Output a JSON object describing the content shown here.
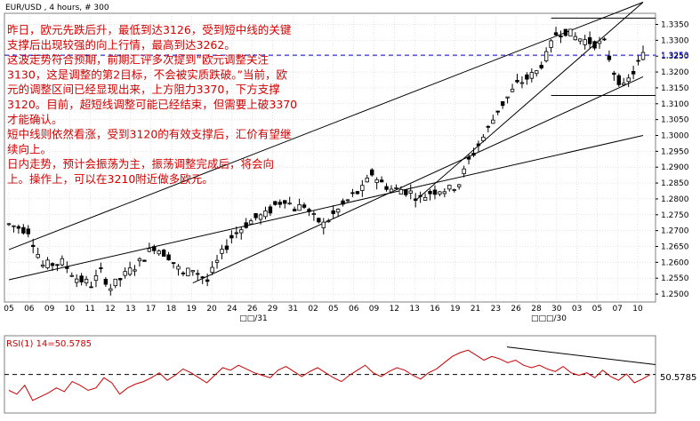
{
  "chart_data": [
    {
      "type": "candlestick",
      "title": "EUR/USD , 4 hours, # 300",
      "y_ticks": [
        "1.3350",
        "1.3300",
        "1.3250",
        "1.3200",
        "1.3150",
        "1.3100",
        "1.3050",
        "1.3000",
        "1.2950",
        "1.2900",
        "1.2850",
        "1.2800",
        "1.2750",
        "1.2700",
        "1.2650",
        "1.2600",
        "1.2550",
        "1.2500"
      ],
      "ylim": [
        1.2475,
        1.3385
      ],
      "last_price_label": "1.3253",
      "last_price": 1.3253,
      "x_ticks": [
        "05",
        "06",
        "09",
        "10",
        "11",
        "12",
        "13",
        "17",
        "18",
        "19",
        "20",
        "24",
        "26",
        "29",
        "31",
        "02",
        "05",
        "06",
        "09",
        "12",
        "13",
        "16",
        "19",
        "21",
        "23",
        "26",
        "28",
        "30",
        "03",
        "05",
        "07",
        "10"
      ],
      "month_labels": [
        "□□/31",
        "□□□/30"
      ],
      "price_path": [
        [
          0,
          1.272
        ],
        [
          4,
          1.27
        ],
        [
          7,
          1.259
        ],
        [
          11,
          1.26
        ],
        [
          14,
          1.255
        ],
        [
          17,
          1.253
        ],
        [
          19,
          1.257
        ],
        [
          21,
          1.252
        ],
        [
          24,
          1.256
        ],
        [
          27,
          1.26
        ],
        [
          30,
          1.265
        ],
        [
          33,
          1.262
        ],
        [
          36,
          1.256
        ],
        [
          38,
          1.258
        ],
        [
          41,
          1.254
        ],
        [
          43,
          1.26
        ],
        [
          46,
          1.268
        ],
        [
          49,
          1.272
        ],
        [
          51,
          1.274
        ],
        [
          53,
          1.275
        ],
        [
          55,
          1.278
        ],
        [
          57,
          1.28
        ],
        [
          59,
          1.277
        ],
        [
          61,
          1.278
        ],
        [
          63,
          1.274
        ],
        [
          65,
          1.272
        ],
        [
          67,
          1.275
        ],
        [
          69,
          1.278
        ],
        [
          71,
          1.281
        ],
        [
          73,
          1.283
        ],
        [
          75,
          1.288
        ],
        [
          77,
          1.285
        ],
        [
          79,
          1.283
        ],
        [
          81,
          1.283
        ],
        [
          83,
          1.282
        ],
        [
          85,
          1.28
        ],
        [
          87,
          1.282
        ],
        [
          89,
          1.283
        ],
        [
          91,
          1.283
        ],
        [
          93,
          1.285
        ],
        [
          95,
          1.292
        ],
        [
          97,
          1.297
        ],
        [
          99,
          1.302
        ],
        [
          101,
          1.308
        ],
        [
          103,
          1.312
        ],
        [
          105,
          1.316
        ],
        [
          107,
          1.318
        ],
        [
          109,
          1.32
        ],
        [
          111,
          1.325
        ],
        [
          113,
          1.332
        ],
        [
          115,
          1.333
        ],
        [
          117,
          1.331
        ],
        [
          119,
          1.33
        ],
        [
          121,
          1.329
        ],
        [
          123,
          1.329
        ],
        [
          125,
          1.32
        ],
        [
          127,
          1.315
        ],
        [
          129,
          1.32
        ],
        [
          131,
          1.3253
        ]
      ],
      "trend_lines": [
        [
          [
            0,
            1.2545
          ],
          [
            131,
            1.3
          ]
        ],
        [
          [
            38,
            1.2535
          ],
          [
            131,
            1.3185
          ]
        ],
        [
          [
            0,
            1.264
          ],
          [
            131,
            1.342
          ]
        ],
        [
          [
            84,
            1.2795
          ],
          [
            131,
            1.342
          ]
        ]
      ],
      "horizontal_lines": [
        1.3126,
        1.337
      ],
      "dashed_line": 1.3253
    },
    {
      "type": "line",
      "title": "RSI(1) 14=50.5785",
      "last_value_label": "50.5785",
      "last_value": 50.5785,
      "ylim": [
        20,
        80
      ],
      "dashed_level": 50.5785,
      "values": [
        38,
        35,
        42,
        30,
        33,
        36,
        40,
        37,
        45,
        42,
        38,
        40,
        48,
        44,
        35,
        40,
        43,
        45,
        48,
        52,
        46,
        50,
        55,
        52,
        48,
        44,
        50,
        56,
        54,
        58,
        55,
        52,
        50,
        48,
        54,
        57,
        53,
        49,
        53,
        56,
        52,
        48,
        45,
        50,
        54,
        58,
        52,
        49,
        53,
        56,
        54,
        50,
        47,
        52,
        55,
        60,
        65,
        68,
        70,
        66,
        62,
        65,
        63,
        60,
        62,
        58,
        56,
        58,
        55,
        53,
        57,
        52,
        50,
        52,
        48,
        54,
        49,
        46,
        51,
        44,
        47,
        50.5785
      ],
      "resistance_line": [
        [
          0,
          72.5
        ],
        [
          1,
          58.5
        ]
      ]
    }
  ],
  "note": {
    "lines": [
      "昨日，欧元先跌后升，最低到达3126，受到短中线的关键",
      "支撑后出现较强的向上行情，最高到达3262。",
      "这波走势符合预期，前期汇评多次提到“欧元调整关注",
      "3130，这是调整的第2目标，不会被实质跌破。”当前，欧",
      "元的调整区间已经显现出来，上方阻力3370，下方支撑",
      "3120。目前，超短线调整可能已经结束，但需要上破3370",
      "才能确认。",
      "短中线则依然看涨，受到3120的有效支撑后，汇价有望继",
      "续向上。",
      "日内走势，预计会振荡为主，振荡调整完成后，将会向",
      "上。操作上，可以在3210附近做多欧元。"
    ]
  },
  "colors": {
    "grid": "#c8c8c8",
    "candle": "#000000",
    "trend": "#000000",
    "dashed": "#0000cc",
    "rsi_line": "#cc0000",
    "rsi_title": "#cc0000",
    "note_text": "#d40000",
    "last_price_text": "#0000cc"
  }
}
